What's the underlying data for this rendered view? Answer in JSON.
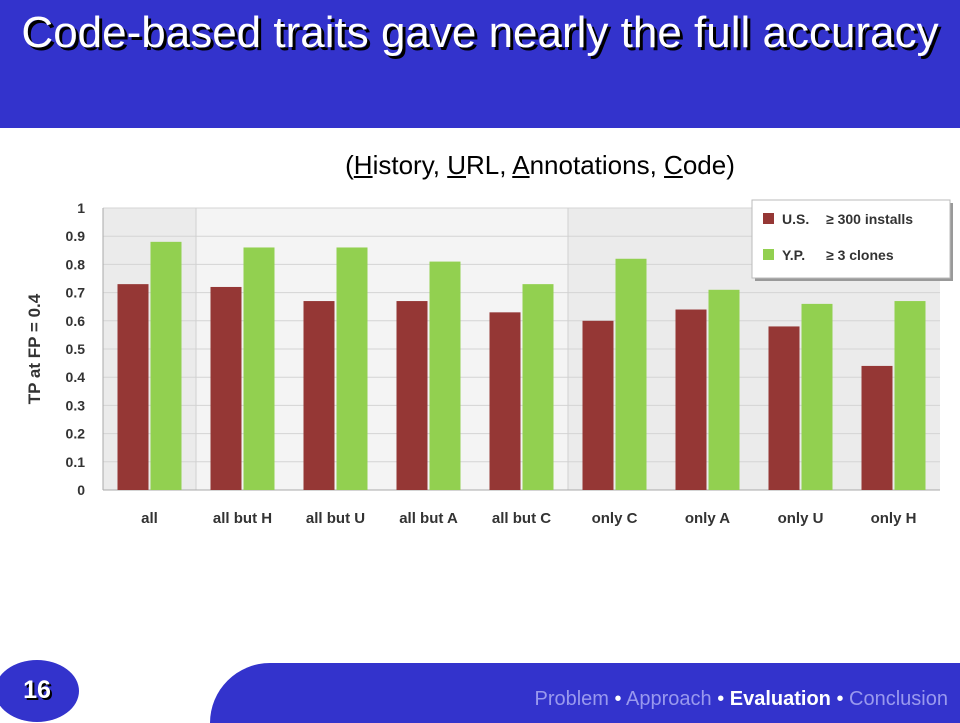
{
  "slide": {
    "title": "Code-based traits gave nearly the full accuracy",
    "subtitle_parts": [
      "(",
      "H",
      "istory, ",
      "U",
      "RL, ",
      "A",
      "nnotations, ",
      "C",
      "ode)"
    ],
    "page_number": "16",
    "nav": {
      "items": [
        "Problem",
        "Approach",
        "Evaluation",
        "Conclusion"
      ],
      "separator": "•",
      "current": "Evaluation"
    }
  },
  "colors": {
    "title_bar": "#3333cc",
    "series_us": "#953735",
    "series_yp": "#92d050"
  },
  "chart_data": {
    "type": "bar",
    "ylabel": "TP at FP = 0.4",
    "xlabel": "",
    "ylim": [
      0,
      1
    ],
    "yticks": [
      "0",
      "0.1",
      "0.2",
      "0.3",
      "0.4",
      "0.5",
      "0.6",
      "0.7",
      "0.8",
      "0.9",
      "1"
    ],
    "categories": [
      "all",
      "all but H",
      "all but U",
      "all but A",
      "all but C",
      "only C",
      "only A",
      "only U",
      "only H"
    ],
    "series": [
      {
        "name": "U.S.",
        "legend_note": "≥ 300 installs",
        "values": [
          0.73,
          0.72,
          0.67,
          0.67,
          0.63,
          0.6,
          0.64,
          0.58,
          0.44
        ]
      },
      {
        "name": "Y.P.",
        "legend_note": "≥ 3 clones",
        "values": [
          0.88,
          0.86,
          0.86,
          0.81,
          0.73,
          0.82,
          0.71,
          0.66,
          0.67
        ]
      }
    ],
    "legend_position": "top-right",
    "grid": true
  }
}
